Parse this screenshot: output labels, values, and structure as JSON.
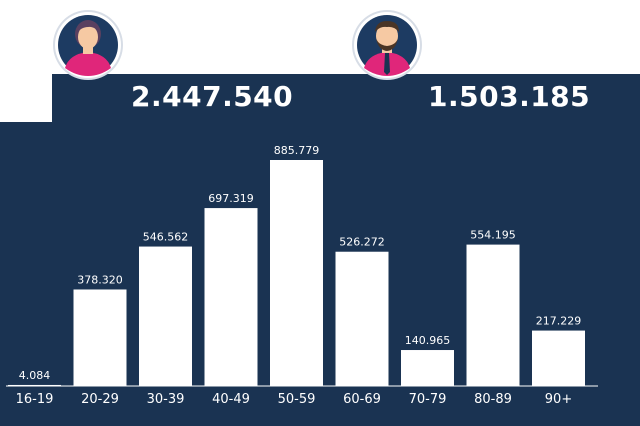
{
  "totals": {
    "female": {
      "icon": "female-avatar-icon",
      "value": "2.447.540"
    },
    "male": {
      "icon": "male-avatar-icon",
      "value": "1.503.185"
    }
  },
  "colors": {
    "background": "#1a3352",
    "bar": "#ffffff",
    "text": "#ffffff",
    "female_avatar_bg": "#1d3b62",
    "female_shirt": "#e0267a",
    "male_shirt": "#e0267a",
    "male_hair": "#4a3526"
  },
  "chart_data": {
    "type": "bar",
    "categories": [
      "16-19",
      "20-29",
      "30-39",
      "40-49",
      "50-59",
      "60-69",
      "70-79",
      "80-89",
      "90+"
    ],
    "values": [
      4084,
      378320,
      546562,
      697319,
      885779,
      526272,
      140965,
      554195,
      217229
    ],
    "value_labels": [
      "4.084",
      "378.320",
      "546.562",
      "697.319",
      "885.779",
      "526.272",
      "140.965",
      "554.195",
      "217.229"
    ],
    "ylim": [
      0,
      885779
    ],
    "grid": false
  }
}
